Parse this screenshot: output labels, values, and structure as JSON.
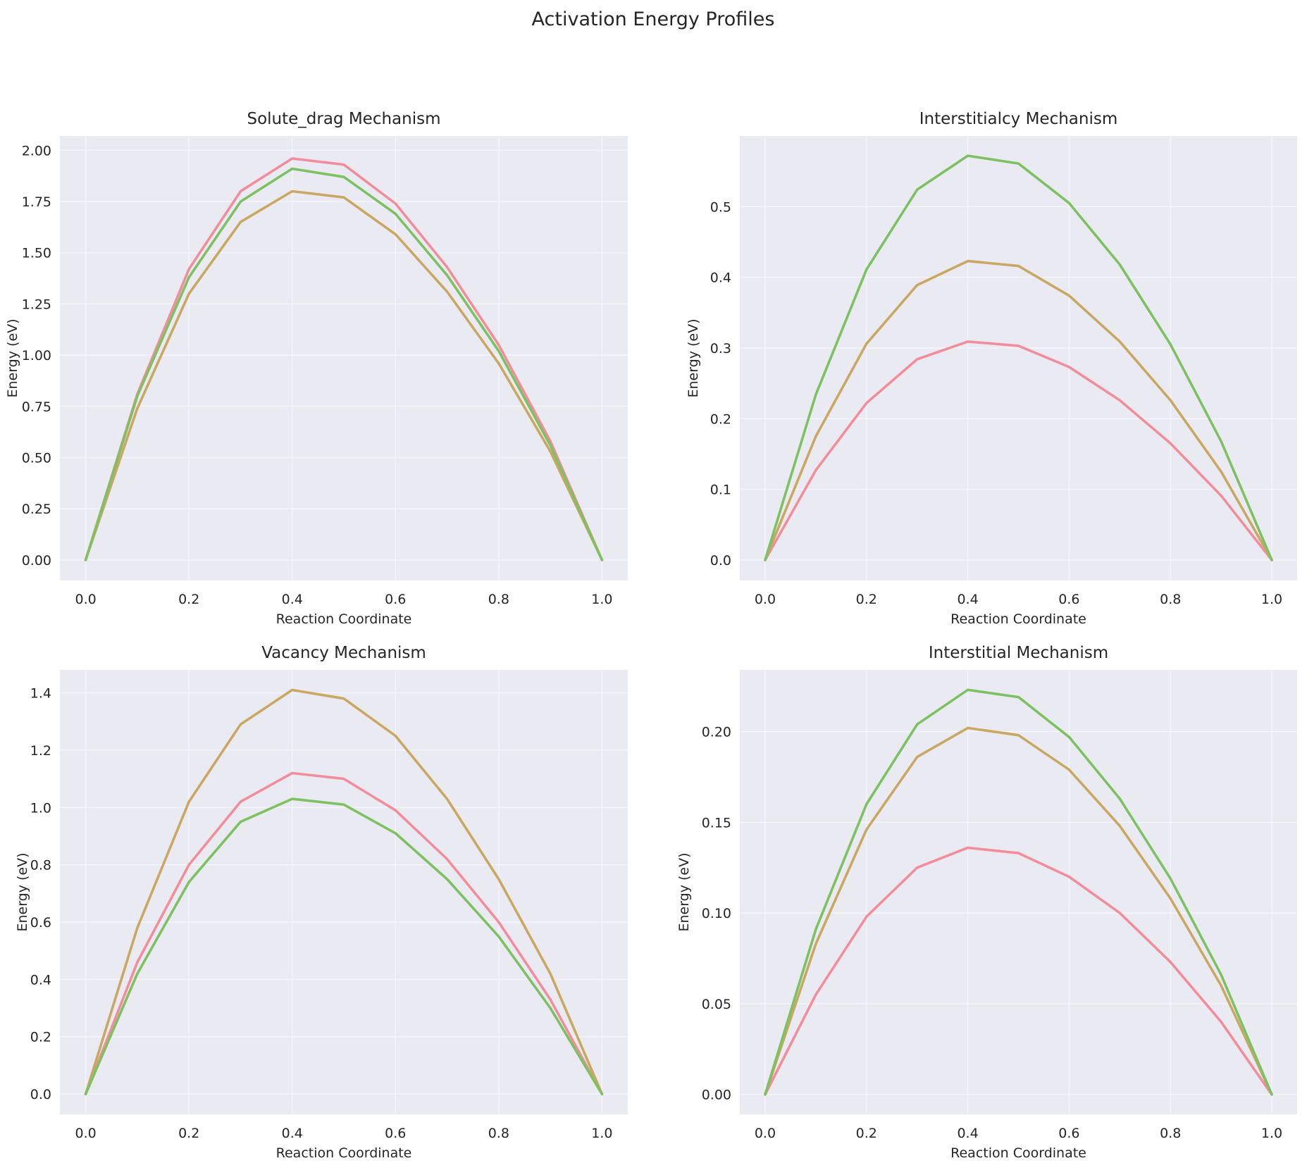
{
  "figure_title": "Activation Energy Profiles",
  "chart_data": [
    {
      "type": "line",
      "title": "Solute_drag Mechanism",
      "xlabel": "Reaction Coordinate",
      "ylabel": "Energy (eV)",
      "xlim": [
        -0.05,
        1.05
      ],
      "ylim": [
        -0.1,
        2.07
      ],
      "xticks": [
        0.0,
        0.2,
        0.4,
        0.6,
        0.8,
        1.0
      ],
      "xtick_labels": [
        "0.0",
        "0.2",
        "0.4",
        "0.6",
        "0.8",
        "1.0"
      ],
      "yticks": [
        0.0,
        0.25,
        0.5,
        0.75,
        1.0,
        1.25,
        1.5,
        1.75,
        2.0
      ],
      "ytick_labels": [
        "0.00",
        "0.25",
        "0.50",
        "0.75",
        "1.00",
        "1.25",
        "1.50",
        "1.75",
        "2.00"
      ],
      "grid": true,
      "x": [
        0.0,
        0.1,
        0.2,
        0.3,
        0.4,
        0.5,
        0.6,
        0.7,
        0.8,
        0.9,
        1.0
      ],
      "series": [
        {
          "color": "#f28e9c",
          "values": [
            0.0,
            0.81,
            1.42,
            1.8,
            1.96,
            1.93,
            1.74,
            1.43,
            1.05,
            0.58,
            0.0
          ]
        },
        {
          "color": "#c9a864",
          "values": [
            0.0,
            0.74,
            1.3,
            1.65,
            1.8,
            1.77,
            1.59,
            1.31,
            0.96,
            0.53,
            0.0
          ]
        },
        {
          "color": "#7ec163",
          "values": [
            0.0,
            0.8,
            1.38,
            1.75,
            1.91,
            1.87,
            1.69,
            1.39,
            1.02,
            0.56,
            0.0
          ]
        }
      ]
    },
    {
      "type": "line",
      "title": "Interstitialcy Mechanism",
      "xlabel": "Reaction Coordinate",
      "ylabel": "Energy (eV)",
      "xlim": [
        -0.05,
        1.05
      ],
      "ylim": [
        -0.029,
        0.6
      ],
      "xticks": [
        0.0,
        0.2,
        0.4,
        0.6,
        0.8,
        1.0
      ],
      "xtick_labels": [
        "0.0",
        "0.2",
        "0.4",
        "0.6",
        "0.8",
        "1.0"
      ],
      "yticks": [
        0.0,
        0.1,
        0.2,
        0.3,
        0.4,
        0.5
      ],
      "ytick_labels": [
        "0.0",
        "0.1",
        "0.2",
        "0.3",
        "0.4",
        "0.5"
      ],
      "grid": true,
      "x": [
        0.0,
        0.1,
        0.2,
        0.3,
        0.4,
        0.5,
        0.6,
        0.7,
        0.8,
        0.9,
        1.0
      ],
      "series": [
        {
          "color": "#f28e9c",
          "values": [
            0.0,
            0.127,
            0.222,
            0.284,
            0.309,
            0.303,
            0.273,
            0.226,
            0.165,
            0.091,
            0.0
          ]
        },
        {
          "color": "#c9a864",
          "values": [
            0.0,
            0.175,
            0.306,
            0.389,
            0.423,
            0.416,
            0.374,
            0.309,
            0.226,
            0.125,
            0.0
          ]
        },
        {
          "color": "#7ec163",
          "values": [
            0.0,
            0.234,
            0.411,
            0.524,
            0.572,
            0.561,
            0.505,
            0.418,
            0.305,
            0.168,
            0.0
          ]
        }
      ]
    },
    {
      "type": "line",
      "title": "Vacancy Mechanism",
      "xlabel": "Reaction Coordinate",
      "ylabel": "Energy (eV)",
      "xlim": [
        -0.05,
        1.05
      ],
      "ylim": [
        -0.071,
        1.48
      ],
      "xticks": [
        0.0,
        0.2,
        0.4,
        0.6,
        0.8,
        1.0
      ],
      "xtick_labels": [
        "0.0",
        "0.2",
        "0.4",
        "0.6",
        "0.8",
        "1.0"
      ],
      "yticks": [
        0.0,
        0.2,
        0.4,
        0.6,
        0.8,
        1.0,
        1.2,
        1.4
      ],
      "ytick_labels": [
        "0.0",
        "0.2",
        "0.4",
        "0.6",
        "0.8",
        "1.0",
        "1.2",
        "1.4"
      ],
      "grid": true,
      "x": [
        0.0,
        0.1,
        0.2,
        0.3,
        0.4,
        0.5,
        0.6,
        0.7,
        0.8,
        0.9,
        1.0
      ],
      "series": [
        {
          "color": "#f28e9c",
          "values": [
            0.0,
            0.46,
            0.8,
            1.02,
            1.12,
            1.1,
            0.99,
            0.82,
            0.6,
            0.33,
            0.0
          ]
        },
        {
          "color": "#c9a864",
          "values": [
            0.0,
            0.58,
            1.02,
            1.29,
            1.41,
            1.38,
            1.25,
            1.03,
            0.75,
            0.42,
            0.0
          ]
        },
        {
          "color": "#7ec163",
          "values": [
            0.0,
            0.42,
            0.74,
            0.95,
            1.03,
            1.01,
            0.91,
            0.75,
            0.55,
            0.3,
            0.0
          ]
        }
      ]
    },
    {
      "type": "line",
      "title": "Interstitial Mechanism",
      "xlabel": "Reaction Coordinate",
      "ylabel": "Energy (eV)",
      "xlim": [
        -0.05,
        1.05
      ],
      "ylim": [
        -0.011,
        0.234
      ],
      "xticks": [
        0.0,
        0.2,
        0.4,
        0.6,
        0.8,
        1.0
      ],
      "xtick_labels": [
        "0.0",
        "0.2",
        "0.4",
        "0.6",
        "0.8",
        "1.0"
      ],
      "yticks": [
        0.0,
        0.05,
        0.1,
        0.15,
        0.2
      ],
      "ytick_labels": [
        "0.00",
        "0.05",
        "0.10",
        "0.15",
        "0.20"
      ],
      "grid": true,
      "x": [
        0.0,
        0.1,
        0.2,
        0.3,
        0.4,
        0.5,
        0.6,
        0.7,
        0.8,
        0.9,
        1.0
      ],
      "series": [
        {
          "color": "#f28e9c",
          "values": [
            0.0,
            0.055,
            0.098,
            0.125,
            0.136,
            0.133,
            0.12,
            0.1,
            0.073,
            0.04,
            0.0
          ]
        },
        {
          "color": "#c9a864",
          "values": [
            0.0,
            0.083,
            0.146,
            0.186,
            0.202,
            0.198,
            0.179,
            0.148,
            0.108,
            0.06,
            0.0
          ]
        },
        {
          "color": "#7ec163",
          "values": [
            0.0,
            0.091,
            0.16,
            0.204,
            0.223,
            0.219,
            0.197,
            0.163,
            0.119,
            0.066,
            0.0
          ]
        }
      ]
    }
  ]
}
